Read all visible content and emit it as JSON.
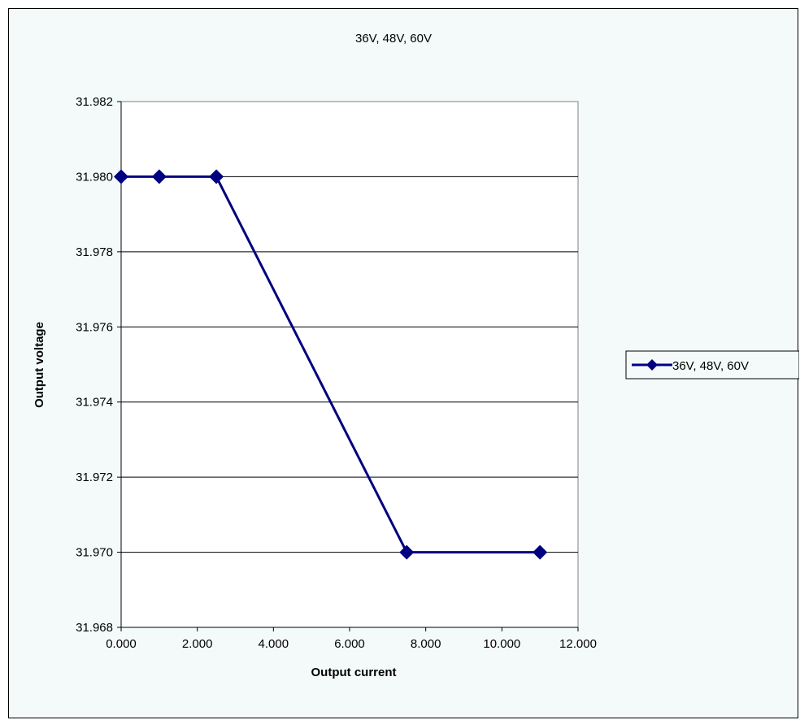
{
  "chart_data": {
    "type": "line",
    "title": "36V, 48V, 60V",
    "xlabel": "Output current",
    "ylabel": "Output voltage",
    "xlim": [
      0,
      12
    ],
    "ylim": [
      31.968,
      31.982
    ],
    "x_ticks": [
      0,
      2,
      4,
      6,
      8,
      10,
      12
    ],
    "y_ticks": [
      31.968,
      31.97,
      31.972,
      31.974,
      31.976,
      31.978,
      31.98,
      31.982
    ],
    "x_tick_labels": [
      "0.000",
      "2.000",
      "4.000",
      "6.000",
      "8.000",
      "10.000",
      "12.000"
    ],
    "y_tick_labels": [
      "31.968",
      "31.970",
      "31.972",
      "31.974",
      "31.976",
      "31.978",
      "31.980",
      "31.982"
    ],
    "grid": "horizontal",
    "legend_position": "right",
    "series": [
      {
        "name": "36V, 48V, 60V",
        "color": "#000080",
        "marker": "diamond",
        "x": [
          0,
          1,
          2.5,
          7.5,
          11
        ],
        "y": [
          31.98,
          31.98,
          31.98,
          31.97,
          31.97
        ]
      }
    ]
  },
  "colors": {
    "chart_background": "#f4fafa",
    "plot_background": "#ffffff",
    "series_color": "#000080"
  }
}
